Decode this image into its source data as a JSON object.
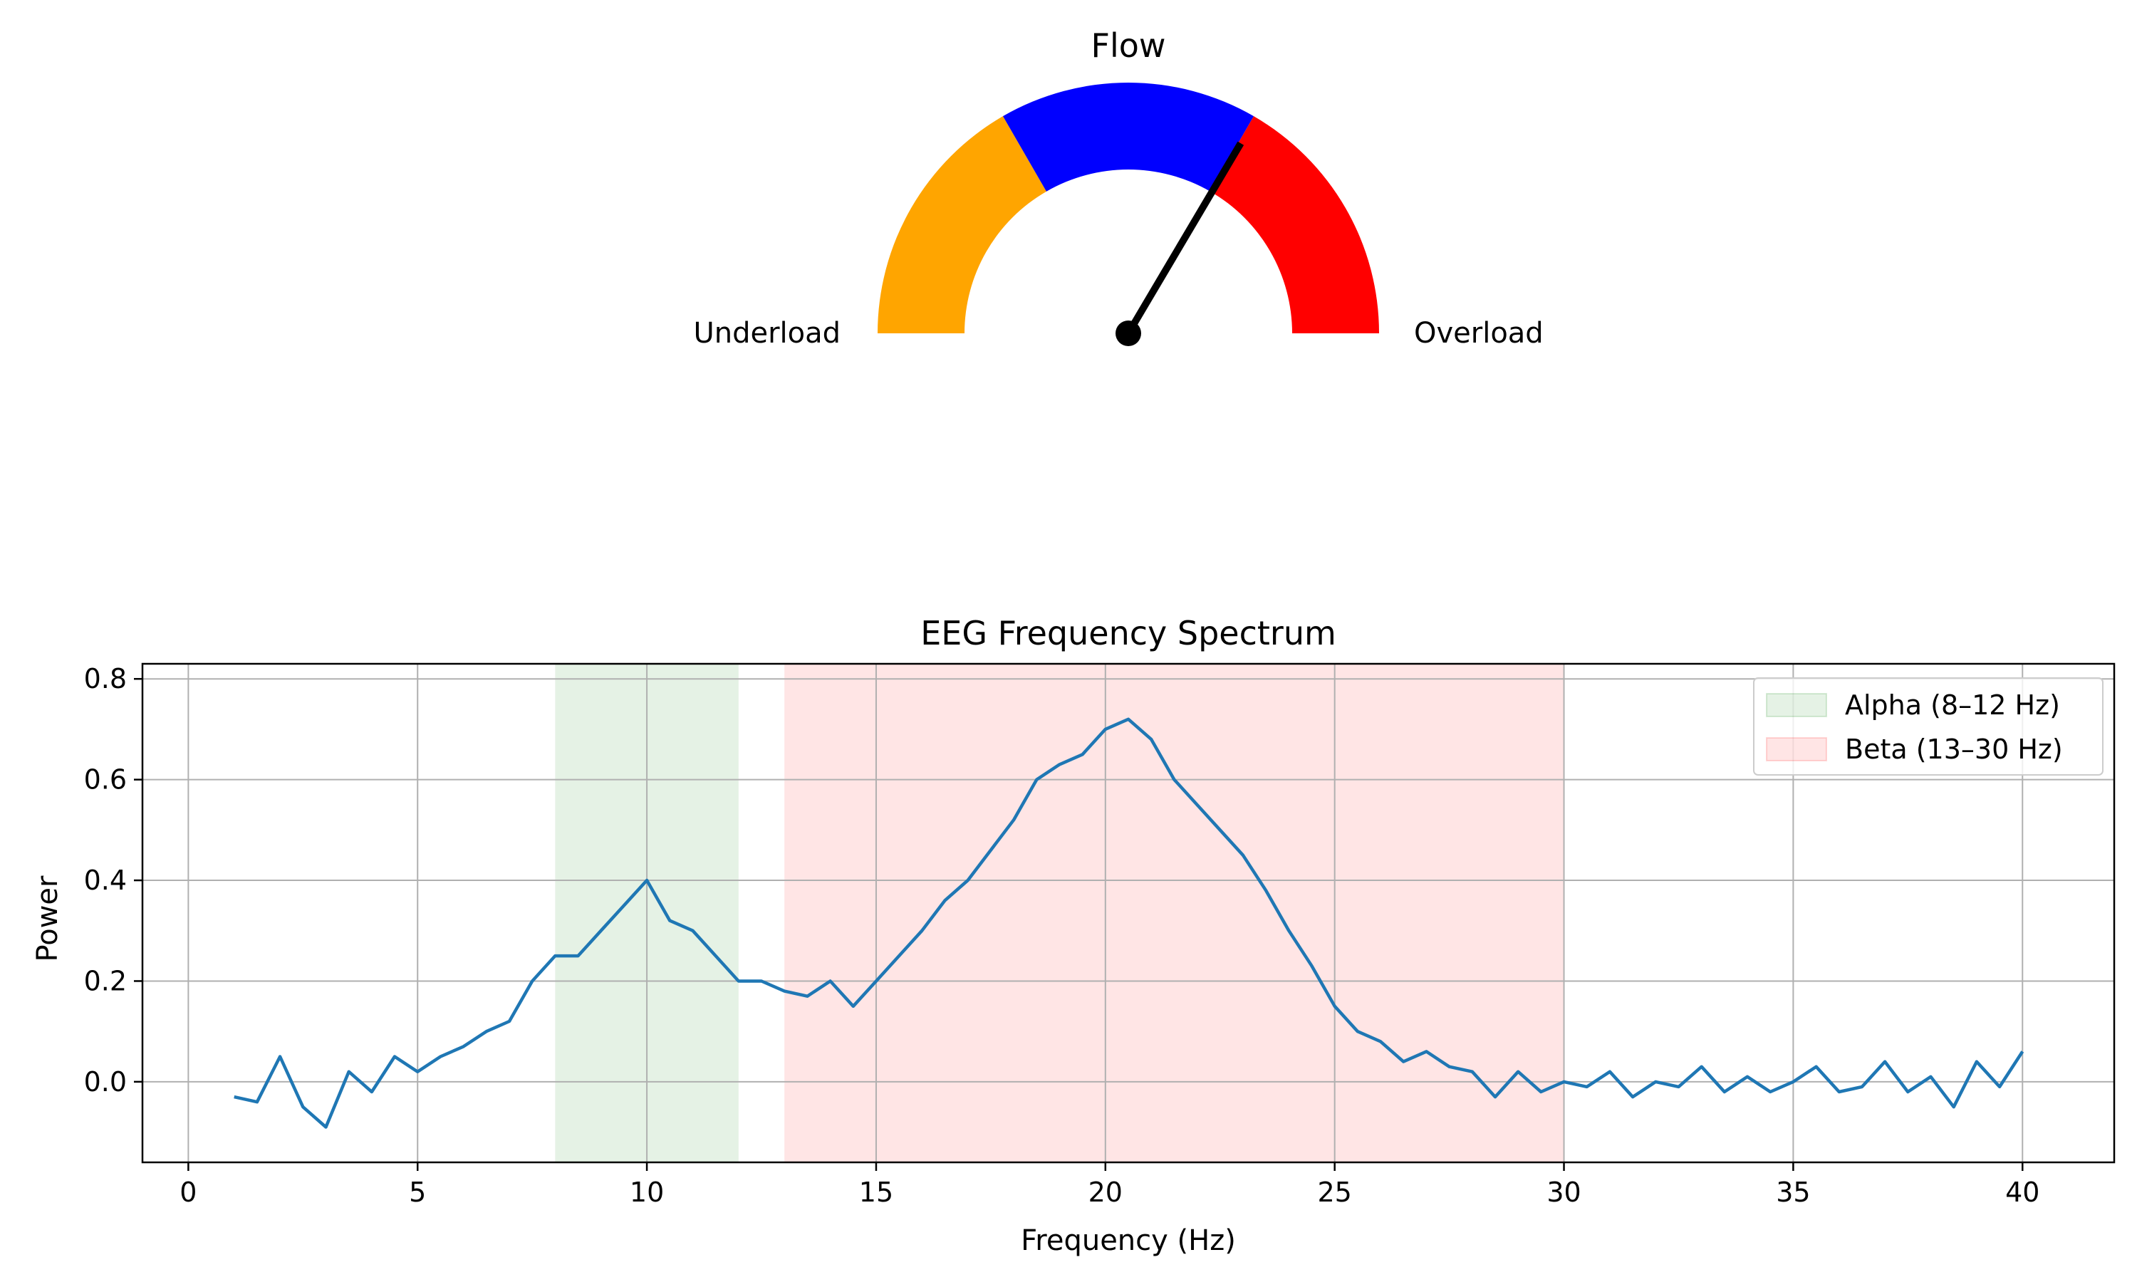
{
  "chart_data": [
    {
      "type": "gauge",
      "title": "Flow",
      "left_label": "Underload",
      "right_label": "Overload",
      "range": [
        0,
        1
      ],
      "segments": [
        {
          "from": 0.0,
          "to": 0.3333,
          "color": "#ffa500"
        },
        {
          "from": 0.3333,
          "to": 0.6667,
          "color": "#0000ff"
        },
        {
          "from": 0.6667,
          "to": 1.0,
          "color": "#ff0000"
        }
      ],
      "needle_value": 0.67,
      "needle_color": "#000000"
    },
    {
      "type": "line",
      "title": "EEG Frequency Spectrum",
      "xlabel": "Frequency (Hz)",
      "ylabel": "Power",
      "xlim": [
        -1,
        42
      ],
      "ylim": [
        -0.16,
        0.83
      ],
      "xticks": [
        0,
        5,
        10,
        15,
        20,
        25,
        30,
        35,
        40
      ],
      "yticks": [
        0.0,
        0.2,
        0.4,
        0.6,
        0.8
      ],
      "ytick_labels": [
        "0.0",
        "0.2",
        "0.4",
        "0.6",
        "0.8"
      ],
      "grid": true,
      "legend_position": "top-right",
      "bands": [
        {
          "name": "Alpha (8–12 Hz)",
          "from": 8,
          "to": 12,
          "color": "#008000",
          "alpha": 0.1
        },
        {
          "name": "Beta (13–30 Hz)",
          "from": 13,
          "to": 30,
          "color": "#ff0000",
          "alpha": 0.1
        }
      ],
      "series": [
        {
          "color": "#1f77b4",
          "x": [
            1.0,
            1.5,
            2.0,
            2.5,
            3.0,
            3.5,
            4.0,
            4.5,
            5.0,
            5.5,
            6.0,
            6.5,
            7.0,
            7.5,
            8.0,
            8.5,
            9.0,
            9.5,
            10.0,
            10.5,
            11.0,
            11.5,
            12.0,
            12.5,
            13.0,
            13.5,
            14.0,
            14.5,
            15.0,
            15.5,
            16.0,
            16.5,
            17.0,
            17.5,
            18.0,
            18.5,
            19.0,
            19.5,
            20.0,
            20.5,
            21.0,
            21.5,
            22.0,
            22.5,
            23.0,
            23.5,
            24.0,
            24.5,
            25.0,
            25.5,
            26.0,
            26.5,
            27.0,
            27.5,
            28.0,
            28.5,
            29.0,
            29.5,
            30.0,
            30.5,
            31.0,
            31.5,
            32.0,
            32.5,
            33.0,
            33.5,
            34.0,
            34.5,
            35.0,
            35.5,
            36.0,
            36.5,
            37.0,
            37.5,
            38.0,
            38.5,
            39.0,
            39.5,
            40.0
          ],
          "values": [
            -0.03,
            -0.04,
            0.05,
            -0.05,
            -0.09,
            0.02,
            -0.02,
            0.05,
            0.02,
            0.05,
            0.07,
            0.1,
            0.12,
            0.2,
            0.25,
            0.25,
            0.3,
            0.35,
            0.4,
            0.32,
            0.3,
            0.25,
            0.2,
            0.2,
            0.18,
            0.17,
            0.2,
            0.15,
            0.2,
            0.25,
            0.3,
            0.36,
            0.4,
            0.46,
            0.52,
            0.6,
            0.63,
            0.65,
            0.7,
            0.72,
            0.68,
            0.6,
            0.55,
            0.5,
            0.45,
            0.38,
            0.3,
            0.23,
            0.15,
            0.1,
            0.08,
            0.04,
            0.06,
            0.03,
            0.02,
            -0.03,
            0.02,
            -0.02,
            0.0,
            -0.01,
            0.02,
            -0.03,
            0.0,
            -0.01,
            0.03,
            -0.02,
            0.01,
            -0.02,
            0.0,
            0.03,
            -0.02,
            -0.01,
            0.04,
            -0.02,
            0.01,
            -0.05,
            0.04,
            -0.01,
            0.06
          ]
        }
      ]
    }
  ]
}
